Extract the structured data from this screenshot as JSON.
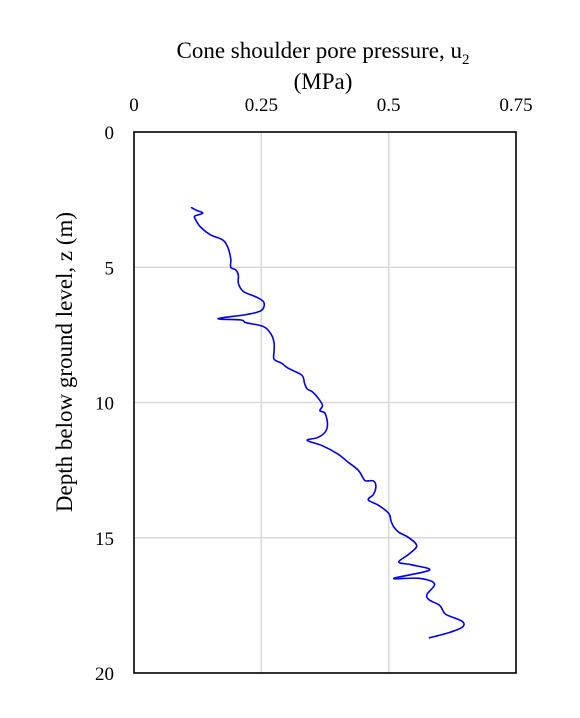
{
  "chart_data": {
    "type": "line",
    "orientation": "depth-profile",
    "x_axis_title": {
      "line1": "Cone shoulder pore pressure, u",
      "subscript": "2",
      "line2": "(MPa)"
    },
    "x_axis_position": "top",
    "ylabel": "Depth below ground level, z (m)",
    "y_inverted": true,
    "xlim": [
      0,
      0.75
    ],
    "ylim": [
      0,
      20
    ],
    "x_ticks": [
      0,
      0.25,
      0.5,
      0.75
    ],
    "x_tick_labels": [
      "0",
      "0.25",
      "0.5",
      "0.75"
    ],
    "y_ticks": [
      0,
      5,
      10,
      15,
      20
    ],
    "y_tick_labels": [
      "0",
      "5",
      "10",
      "15",
      "20"
    ],
    "grid": true,
    "legend": "none",
    "colors": {
      "series": "#0000ee",
      "grid": "#d9d9d9",
      "frame": "#000000"
    },
    "series": [
      {
        "x": [
          0.113,
          0.123,
          0.135,
          0.12,
          0.12,
          0.13,
          0.15,
          0.175,
          0.185,
          0.19,
          0.19,
          0.2,
          0.205,
          0.205,
          0.215,
          0.24,
          0.255,
          0.25,
          0.22,
          0.165,
          0.21,
          0.22,
          0.255,
          0.27,
          0.275,
          0.275,
          0.275,
          0.29,
          0.3,
          0.31,
          0.33,
          0.335,
          0.34,
          0.35,
          0.36,
          0.37,
          0.365,
          0.375,
          0.38,
          0.375,
          0.36,
          0.34,
          0.37,
          0.4,
          0.42,
          0.44,
          0.45,
          0.455,
          0.47,
          0.475,
          0.47,
          0.46,
          0.48,
          0.5,
          0.505,
          0.51,
          0.52,
          0.54,
          0.555,
          0.54,
          0.52,
          0.545,
          0.58,
          0.51,
          0.56,
          0.59,
          0.575,
          0.58,
          0.6,
          0.61,
          0.62,
          0.645,
          0.645,
          0.62,
          0.58
        ],
        "y": [
          2.8,
          2.9,
          3.0,
          3.1,
          3.2,
          3.5,
          3.8,
          4.0,
          4.3,
          4.7,
          5.0,
          5.1,
          5.3,
          5.6,
          5.9,
          6.1,
          6.3,
          6.6,
          6.75,
          6.9,
          6.95,
          7.05,
          7.2,
          7.5,
          7.8,
          8.1,
          8.4,
          8.55,
          8.7,
          8.8,
          9.0,
          9.3,
          9.5,
          9.6,
          9.8,
          10.1,
          10.3,
          10.4,
          10.8,
          11.1,
          11.3,
          11.4,
          11.6,
          11.9,
          12.2,
          12.5,
          12.8,
          12.9,
          12.9,
          13.1,
          13.4,
          13.6,
          13.8,
          14.1,
          14.4,
          14.6,
          14.8,
          15.0,
          15.3,
          15.6,
          15.9,
          16.0,
          16.2,
          16.5,
          16.5,
          16.7,
          17.1,
          17.3,
          17.5,
          17.8,
          17.9,
          18.1,
          18.3,
          18.5,
          18.7
        ]
      }
    ]
  }
}
